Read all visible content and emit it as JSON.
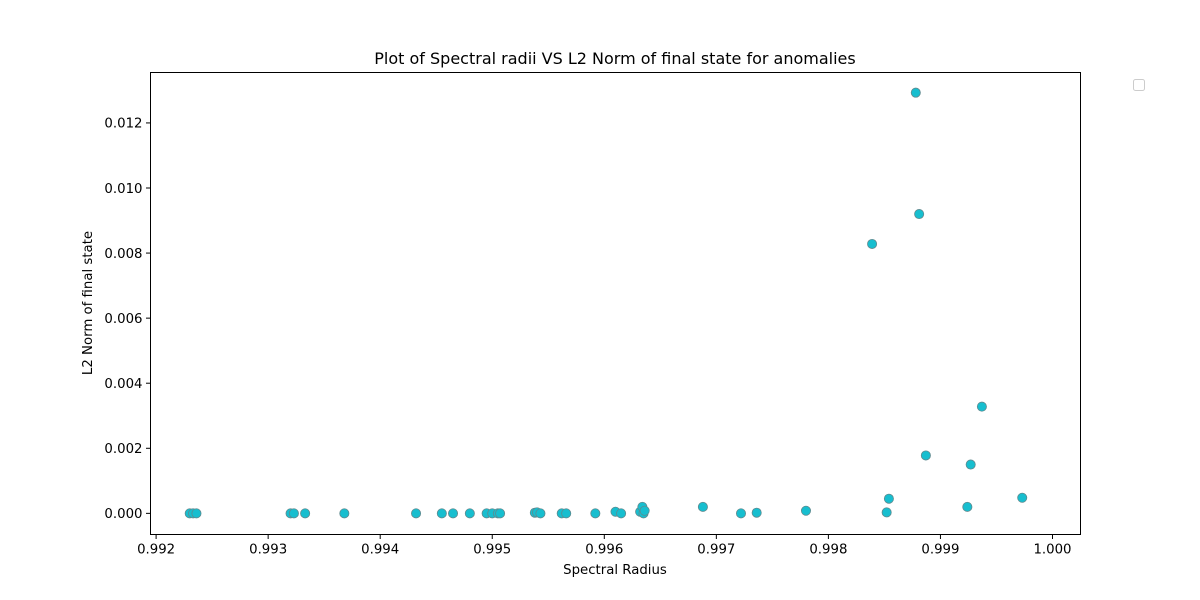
{
  "chart_data": {
    "type": "scatter",
    "title": "Plot of Spectral radii VS L2 Norm of final state for anomalies",
    "xlabel": "Spectral Radius",
    "ylabel": "L2 Norm of final state",
    "xlim": [
      0.99195,
      1.00025
    ],
    "ylim": [
      -0.00065,
      0.01355
    ],
    "x_ticks": [
      0.992,
      0.993,
      0.994,
      0.995,
      0.996,
      0.997,
      0.998,
      0.999,
      1.0
    ],
    "x_tick_labels": [
      "0.992",
      "0.993",
      "0.994",
      "0.995",
      "0.996",
      "0.997",
      "0.998",
      "0.999",
      "1.000"
    ],
    "y_ticks": [
      0.0,
      0.002,
      0.004,
      0.006,
      0.008,
      0.01,
      0.012
    ],
    "y_tick_labels": [
      "0.000",
      "0.002",
      "0.004",
      "0.006",
      "0.008",
      "0.010",
      "0.012"
    ],
    "grid": false,
    "legend": {
      "placement": "upper-right-outside",
      "entries": []
    },
    "marker_color": "#17becf",
    "marker_edge_color": "#5f8a8f",
    "series": [
      {
        "points": [
          [
            0.9923,
            0.0
          ],
          [
            0.99233,
            0.0
          ],
          [
            0.99236,
            0.0
          ],
          [
            0.9932,
            0.0
          ],
          [
            0.99323,
            0.0
          ],
          [
            0.99333,
            0.0
          ],
          [
            0.99368,
            0.0
          ],
          [
            0.99432,
            0.0
          ],
          [
            0.99455,
            0.0
          ],
          [
            0.99465,
            0.0
          ],
          [
            0.9948,
            0.0
          ],
          [
            0.99495,
            0.0
          ],
          [
            0.995,
            0.0
          ],
          [
            0.99505,
            0.0
          ],
          [
            0.99507,
            0.0
          ],
          [
            0.99538,
            2e-05
          ],
          [
            0.9954,
            3e-05
          ],
          [
            0.99543,
            0.0
          ],
          [
            0.99562,
            0.0
          ],
          [
            0.99566,
            0.0
          ],
          [
            0.99592,
            0.0
          ],
          [
            0.9961,
            5e-05
          ],
          [
            0.99615,
            0.0
          ],
          [
            0.99632,
            5e-05
          ],
          [
            0.99634,
            0.0002
          ],
          [
            0.99635,
            0.0
          ],
          [
            0.99636,
            8e-05
          ],
          [
            0.99688,
            0.0002
          ],
          [
            0.99722,
            0.0
          ],
          [
            0.99736,
            2e-05
          ],
          [
            0.9978,
            8e-05
          ],
          [
            0.99839,
            0.00828
          ],
          [
            0.99852,
            3e-05
          ],
          [
            0.99854,
            0.00045
          ],
          [
            0.99878,
            0.01293
          ],
          [
            0.99881,
            0.0092
          ],
          [
            0.99887,
            0.00178
          ],
          [
            0.99924,
            0.0002
          ],
          [
            0.99927,
            0.0015
          ],
          [
            0.99937,
            0.00328
          ],
          [
            0.99973,
            0.00048
          ]
        ]
      }
    ]
  }
}
